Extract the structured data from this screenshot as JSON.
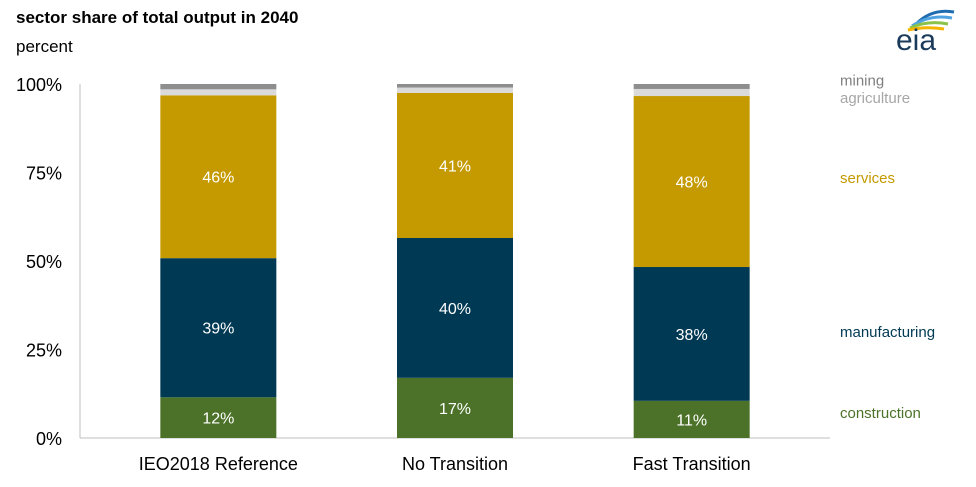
{
  "header": {
    "title": "sector share of total output in 2040",
    "subtitle": "percent"
  },
  "logo": {
    "text": "eia",
    "icon": "eia-logo-icon"
  },
  "chart_data": {
    "type": "bar",
    "stacked": true,
    "title": "sector share of total output in 2040",
    "ylabel": "percent",
    "xlabel": "",
    "ylim": [
      0,
      100
    ],
    "yticks": [
      "0%",
      "25%",
      "50%",
      "75%",
      "100%"
    ],
    "categories": [
      "IEO2018 Reference",
      "No Transition",
      "Fast Transition"
    ],
    "series": [
      {
        "name": "construction",
        "values": [
          11.5,
          17,
          10.5
        ],
        "labels": [
          "12%",
          "17%",
          "11%"
        ],
        "color": "#4b7228"
      },
      {
        "name": "manufacturing",
        "values": [
          39.3,
          39.5,
          37.8
        ],
        "labels": [
          "39%",
          "40%",
          "38%"
        ],
        "color": "#003953"
      },
      {
        "name": "services",
        "values": [
          46,
          41,
          48.3
        ],
        "labels": [
          "46%",
          "41%",
          "48%"
        ],
        "color": "#c49a00"
      },
      {
        "name": "agriculture",
        "values": [
          1.7,
          1.5,
          2.0
        ],
        "labels": [
          "",
          "",
          ""
        ],
        "color": "#dadada"
      },
      {
        "name": "mining",
        "values": [
          1.5,
          1.0,
          1.4
        ],
        "labels": [
          "",
          "",
          ""
        ],
        "color": "#8e8e8e"
      }
    ],
    "legend": {
      "placement": "right",
      "entries": [
        {
          "name": "mining",
          "color": "#7f7f7f",
          "y_value": 101
        },
        {
          "name": "agriculture",
          "color": "#a6a6a6",
          "y_value": 96
        },
        {
          "name": "services",
          "color": "#c49a00",
          "y_value": 73.5
        },
        {
          "name": "manufacturing",
          "color": "#003953",
          "y_value": 30
        },
        {
          "name": "construction",
          "color": "#4b7228",
          "y_value": 7
        }
      ]
    },
    "grid": false
  }
}
